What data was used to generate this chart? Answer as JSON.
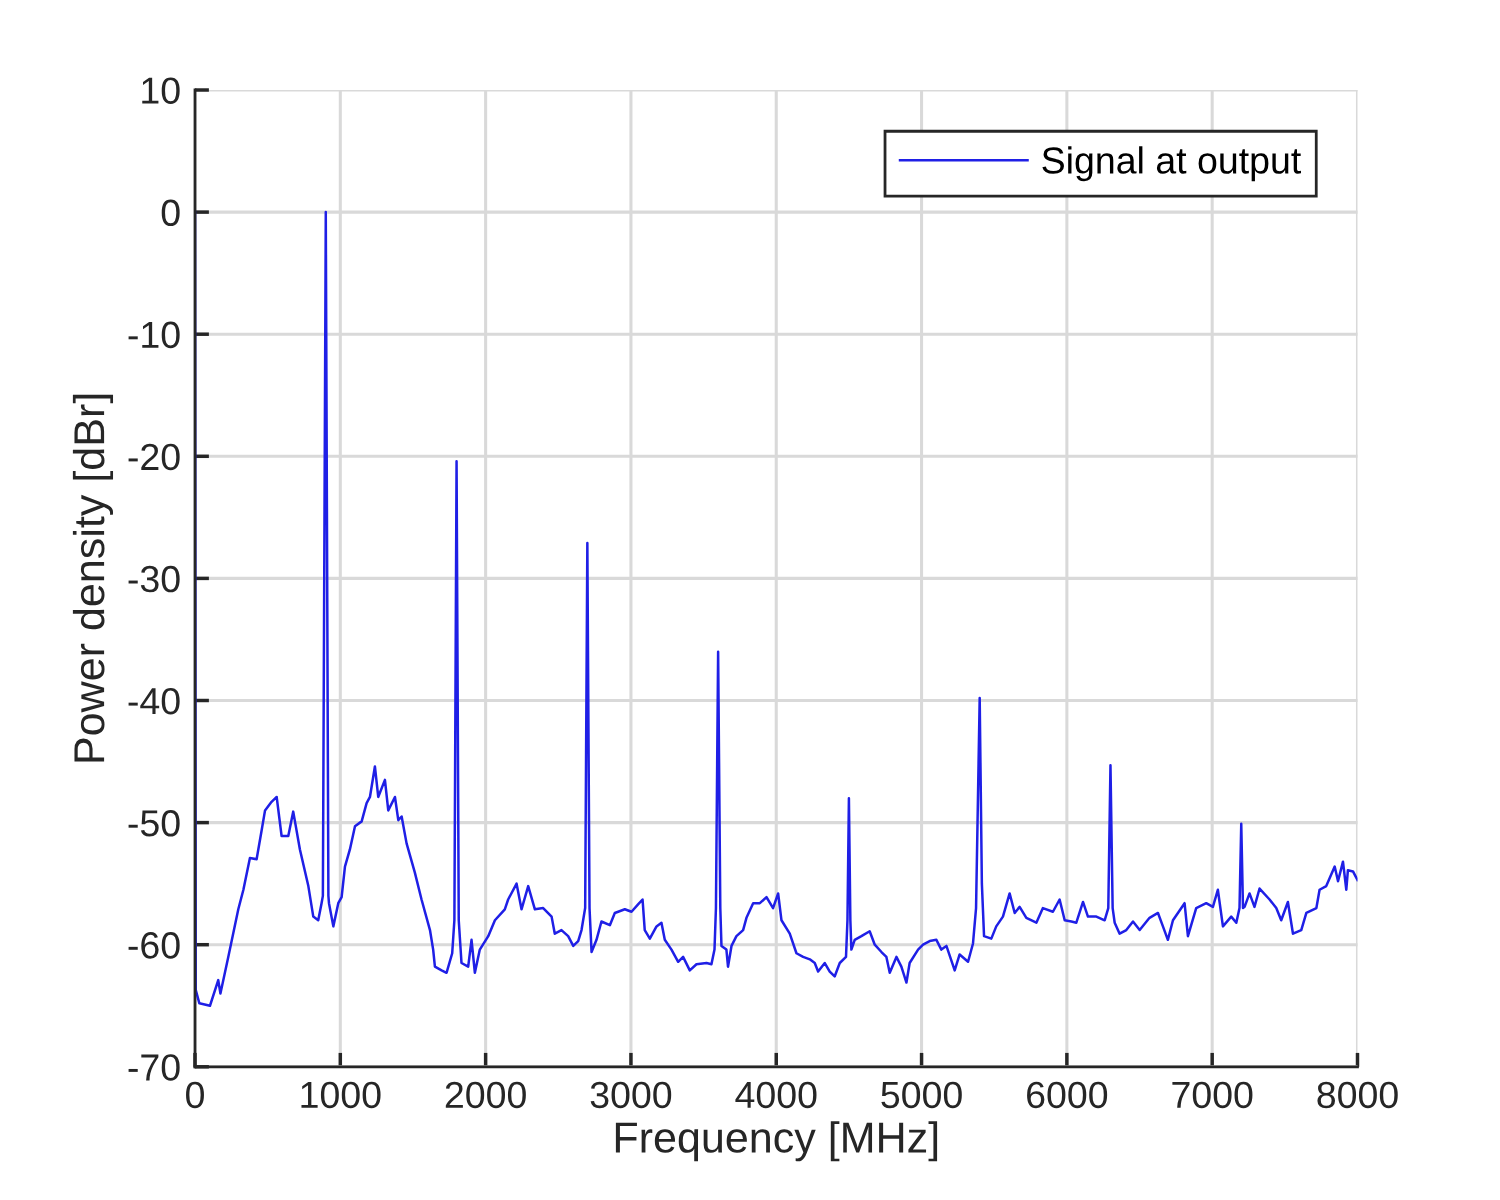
{
  "chart_data": {
    "type": "line",
    "xlabel": "Frequency [MHz]",
    "ylabel": "Power density [dBr]",
    "xlim": [
      0,
      8000
    ],
    "ylim": [
      -70,
      10
    ],
    "xticks": [
      0,
      1000,
      2000,
      3000,
      4000,
      5000,
      6000,
      7000,
      8000
    ],
    "yticks": [
      -70,
      -60,
      -50,
      -40,
      -30,
      -20,
      -10,
      0,
      10
    ],
    "grid": true,
    "legend": "top right",
    "line_style": "solid",
    "series": [
      {
        "name": "Signal at output",
        "color": "#1f1fe6",
        "x": [
          0,
          5,
          30,
          103,
          160,
          175,
          229,
          298,
          333,
          378,
          424,
          459,
          482,
          527,
          562,
          596,
          642,
          676,
          722,
          780,
          814,
          848,
          871,
          880,
          900,
          918,
          922,
          952,
          986,
          1009,
          1032,
          1066,
          1101,
          1147,
          1181,
          1204,
          1238,
          1261,
          1307,
          1330,
          1376,
          1399,
          1422,
          1456,
          1513,
          1559,
          1617,
          1639,
          1651,
          1697,
          1731,
          1770,
          1785,
          1800,
          1815,
          1834,
          1880,
          1903,
          1926,
          1960,
          2018,
          2064,
          2132,
          2155,
          2213,
          2247,
          2293,
          2339,
          2396,
          2454,
          2476,
          2522,
          2568,
          2603,
          2637,
          2660,
          2685,
          2700,
          2715,
          2729,
          2763,
          2797,
          2855,
          2889,
          2958,
          3004,
          3049,
          3080,
          3095,
          3130,
          3176,
          3210,
          3233,
          3279,
          3325,
          3359,
          3405,
          3451,
          3520,
          3554,
          3575,
          3585,
          3600,
          3615,
          3623,
          3657,
          3668,
          3692,
          3726,
          3772,
          3795,
          3841,
          3887,
          3933,
          3978,
          4013,
          4036,
          4093,
          4139,
          4185,
          4231,
          4265,
          4288,
          4334,
          4368,
          4402,
          4437,
          4480,
          4490,
          4500,
          4510,
          4517,
          4540,
          4586,
          4643,
          4678,
          4724,
          4758,
          4781,
          4827,
          4861,
          4896,
          4918,
          4976,
          5010,
          5056,
          5102,
          5136,
          5171,
          5228,
          5262,
          5320,
          5354,
          5375,
          5400,
          5415,
          5430,
          5480,
          5514,
          5560,
          5606,
          5641,
          5675,
          5721,
          5790,
          5835,
          5904,
          5950,
          5985,
          6031,
          6065,
          6111,
          6145,
          6203,
          6260,
          6285,
          6300,
          6315,
          6329,
          6363,
          6409,
          6455,
          6501,
          6569,
          6627,
          6661,
          6695,
          6730,
          6810,
          6833,
          6890,
          6959,
          7005,
          7039,
          7074,
          7131,
          7166,
          7188,
          7200,
          7212,
          7223,
          7257,
          7291,
          7326,
          7395,
          7441,
          7475,
          7521,
          7556,
          7613,
          7648,
          7717,
          7739,
          7785,
          7843,
          7866,
          7900,
          7923,
          7934,
          7969,
          8000
        ],
        "values": [
          0,
          -63.7,
          -64.8,
          -65,
          -62.9,
          -64,
          -61,
          -57.1,
          -55.5,
          -52.9,
          -53,
          -50.6,
          -49,
          -48.3,
          -47.9,
          -51.1,
          -51.1,
          -49.1,
          -52.2,
          -55.2,
          -57.7,
          -58,
          -56.6,
          -56,
          0,
          -56,
          -56.6,
          -58.5,
          -56.6,
          -56.1,
          -53.6,
          -52.2,
          -50.3,
          -49.9,
          -48.4,
          -47.9,
          -45.4,
          -47.9,
          -46.5,
          -49,
          -47.9,
          -49.8,
          -49.5,
          -51.7,
          -54.1,
          -56.3,
          -58.8,
          -60.4,
          -61.8,
          -62.1,
          -62.3,
          -60.7,
          -58,
          -20.4,
          -58,
          -61.5,
          -61.8,
          -59.6,
          -62.3,
          -60.4,
          -59.3,
          -58,
          -57.1,
          -56.3,
          -55,
          -57.1,
          -55.2,
          -57.1,
          -57,
          -57.7,
          -59.1,
          -58.8,
          -59.3,
          -60.1,
          -59.7,
          -58.8,
          -57,
          -27.1,
          -57,
          -60.6,
          -59.6,
          -58.1,
          -58.4,
          -57.4,
          -57.1,
          -57.3,
          -56.7,
          -56.3,
          -58.8,
          -59.5,
          -58.5,
          -58.2,
          -59.6,
          -60.4,
          -61.4,
          -61,
          -62.1,
          -61.6,
          -61.5,
          -61.6,
          -60.4,
          -57,
          -36,
          -57,
          -60.1,
          -60.4,
          -61.8,
          -60.1,
          -59.3,
          -58.8,
          -57.8,
          -56.6,
          -56.6,
          -56.1,
          -57,
          -55.8,
          -58,
          -59.1,
          -60.7,
          -61,
          -61.2,
          -61.5,
          -62.2,
          -61.5,
          -62.2,
          -62.6,
          -61.5,
          -61,
          -58,
          -48,
          -58,
          -60.4,
          -59.6,
          -59.3,
          -58.9,
          -60,
          -60.6,
          -61,
          -62.3,
          -61,
          -61.8,
          -63.1,
          -61.5,
          -60.4,
          -60,
          -59.7,
          -59.6,
          -60.4,
          -60.1,
          -62.1,
          -60.8,
          -61.4,
          -59.9,
          -57,
          -39.8,
          -55,
          -59.3,
          -59.5,
          -58.5,
          -57.7,
          -55.8,
          -57.4,
          -56.9,
          -57.8,
          -58.2,
          -57,
          -57.3,
          -56.3,
          -58,
          -58.1,
          -58.2,
          -56.5,
          -57.7,
          -57.7,
          -58,
          -57,
          -45.3,
          -57,
          -58.2,
          -59.1,
          -58.8,
          -58.1,
          -58.8,
          -57.8,
          -57.4,
          -58.5,
          -59.6,
          -58,
          -56.6,
          -59.3,
          -57,
          -56.6,
          -56.9,
          -55.5,
          -58.5,
          -57.7,
          -58.2,
          -57,
          -50.1,
          -57,
          -56.9,
          -55.8,
          -56.9,
          -55.4,
          -56.3,
          -57,
          -58,
          -56.5,
          -59.1,
          -58.8,
          -57.4,
          -57,
          -55.5,
          -55.2,
          -53.6,
          -54.8,
          -53.2,
          -55.5,
          -53.9,
          -54,
          -54.7
        ]
      }
    ]
  }
}
